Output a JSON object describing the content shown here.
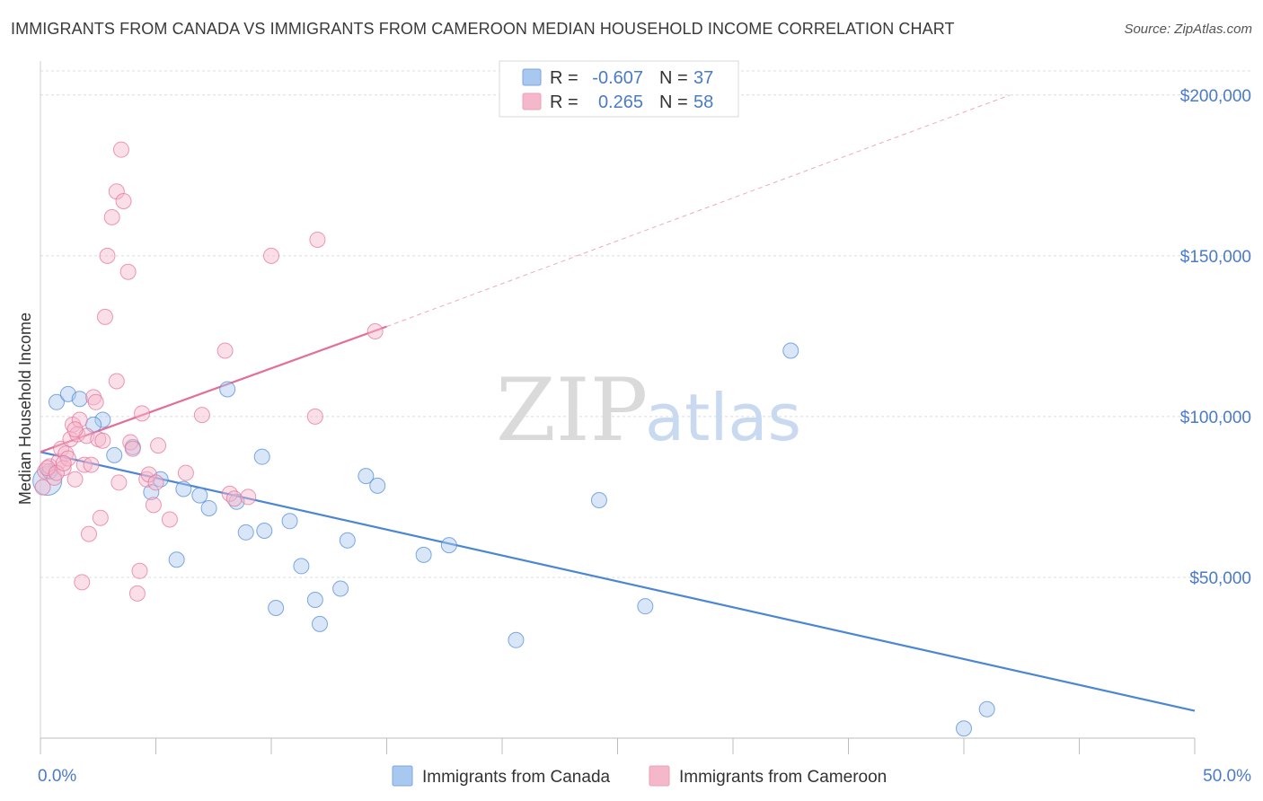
{
  "header": {
    "title": "IMMIGRANTS FROM CANADA VS IMMIGRANTS FROM CAMEROON MEDIAN HOUSEHOLD INCOME CORRELATION CHART",
    "source": "Source: ZipAtlas.com"
  },
  "watermark": {
    "zip": "ZIP",
    "atlas": "atlas"
  },
  "legend": {
    "rows": [
      {
        "r_label": "R =",
        "r_value": "-0.607",
        "n_label": "N =",
        "n_value": "37",
        "color": "#a9c8f0"
      },
      {
        "r_label": "R =",
        "r_value": "0.265",
        "n_label": "N =",
        "n_value": "58",
        "color": "#f5b8cb"
      }
    ]
  },
  "chart_data": {
    "type": "scatter",
    "title": "IMMIGRANTS FROM CANADA VS IMMIGRANTS FROM CAMEROON MEDIAN HOUSEHOLD INCOME CORRELATION CHART",
    "xlabel": "",
    "ylabel": "Median Household Income",
    "xlim": [
      0,
      50
    ],
    "ylim": [
      0,
      210000
    ],
    "x_tick_labels": [
      "0.0%",
      "50.0%"
    ],
    "y_ticks": [
      50000,
      100000,
      150000,
      200000
    ],
    "y_tick_labels": [
      "$50,000",
      "$100,000",
      "$150,000",
      "$200,000"
    ],
    "legend_position": "top-center",
    "series": [
      {
        "name": "Immigrants from Canada",
        "color": "#4a86d4",
        "fill": "#a9c8f0",
        "trend": {
          "x": [
            0,
            50
          ],
          "y": [
            89000,
            8500
          ],
          "dashed_extension": false
        },
        "points": [
          [
            0.3,
            80000
          ],
          [
            0.7,
            104500
          ],
          [
            1.2,
            107000
          ],
          [
            1.7,
            105500
          ],
          [
            2.7,
            99000
          ],
          [
            2.3,
            97500
          ],
          [
            3.2,
            88000
          ],
          [
            4.0,
            90500
          ],
          [
            5.2,
            80500
          ],
          [
            4.8,
            76500
          ],
          [
            6.2,
            77500
          ],
          [
            5.9,
            55500
          ],
          [
            6.9,
            75500
          ],
          [
            7.3,
            71500
          ],
          [
            8.1,
            108500
          ],
          [
            8.5,
            73500
          ],
          [
            8.9,
            64000
          ],
          [
            9.6,
            87500
          ],
          [
            9.7,
            64500
          ],
          [
            10.2,
            40500
          ],
          [
            10.8,
            67500
          ],
          [
            11.3,
            53500
          ],
          [
            11.9,
            43000
          ],
          [
            12.1,
            35500
          ],
          [
            13.0,
            46500
          ],
          [
            13.3,
            61500
          ],
          [
            14.1,
            81500
          ],
          [
            14.6,
            78500
          ],
          [
            16.6,
            57000
          ],
          [
            17.7,
            60000
          ],
          [
            20.6,
            30500
          ],
          [
            24.2,
            74000
          ],
          [
            26.2,
            41000
          ],
          [
            32.5,
            120500
          ],
          [
            40.0,
            3000
          ],
          [
            41.0,
            9000
          ],
          [
            0.4,
            83000
          ]
        ]
      },
      {
        "name": "Immigrants from Cameroon",
        "color": "#e36f98",
        "fill": "#f5b8cb",
        "trend": {
          "x": [
            0,
            15
          ],
          "y": [
            89000,
            128000
          ],
          "dashed_extension": true,
          "dashed_to": [
            42,
            200000
          ]
        },
        "points": [
          [
            0.1,
            78000
          ],
          [
            0.2,
            83000
          ],
          [
            0.4,
            84500
          ],
          [
            0.6,
            81000
          ],
          [
            0.8,
            86000
          ],
          [
            0.9,
            90000
          ],
          [
            1.0,
            84000
          ],
          [
            1.1,
            88500
          ],
          [
            1.2,
            87000
          ],
          [
            1.3,
            93000
          ],
          [
            1.4,
            97500
          ],
          [
            1.5,
            80500
          ],
          [
            1.6,
            94500
          ],
          [
            1.7,
            99000
          ],
          [
            1.8,
            48500
          ],
          [
            1.9,
            85000
          ],
          [
            2.0,
            94000
          ],
          [
            2.1,
            63500
          ],
          [
            2.3,
            106000
          ],
          [
            2.4,
            104500
          ],
          [
            2.5,
            93000
          ],
          [
            2.6,
            68500
          ],
          [
            2.7,
            92500
          ],
          [
            2.8,
            131000
          ],
          [
            2.9,
            150000
          ],
          [
            3.1,
            162000
          ],
          [
            3.3,
            111000
          ],
          [
            3.3,
            170000
          ],
          [
            3.4,
            79500
          ],
          [
            3.5,
            183000
          ],
          [
            3.6,
            167000
          ],
          [
            3.8,
            145000
          ],
          [
            3.9,
            92000
          ],
          [
            4.0,
            90000
          ],
          [
            4.2,
            45000
          ],
          [
            4.3,
            52000
          ],
          [
            4.4,
            101000
          ],
          [
            4.6,
            80500
          ],
          [
            4.7,
            82000
          ],
          [
            4.9,
            72500
          ],
          [
            5.0,
            79500
          ],
          [
            5.1,
            91000
          ],
          [
            5.6,
            68000
          ],
          [
            6.3,
            82500
          ],
          [
            7.0,
            100500
          ],
          [
            8.0,
            120500
          ],
          [
            8.2,
            76000
          ],
          [
            8.4,
            74500
          ],
          [
            9.0,
            75000
          ],
          [
            10.0,
            150000
          ],
          [
            11.9,
            100000
          ],
          [
            12.0,
            155000
          ],
          [
            14.5,
            126500
          ],
          [
            0.3,
            84000
          ],
          [
            0.7,
            82500
          ],
          [
            1.0,
            85500
          ],
          [
            1.5,
            96000
          ],
          [
            2.2,
            85000
          ]
        ]
      }
    ]
  },
  "bottom_legend": {
    "items": [
      {
        "label": "Immigrants from Canada",
        "color": "#a9c8f0"
      },
      {
        "label": "Immigrants from Cameroon",
        "color": "#f5b8cb"
      }
    ]
  }
}
